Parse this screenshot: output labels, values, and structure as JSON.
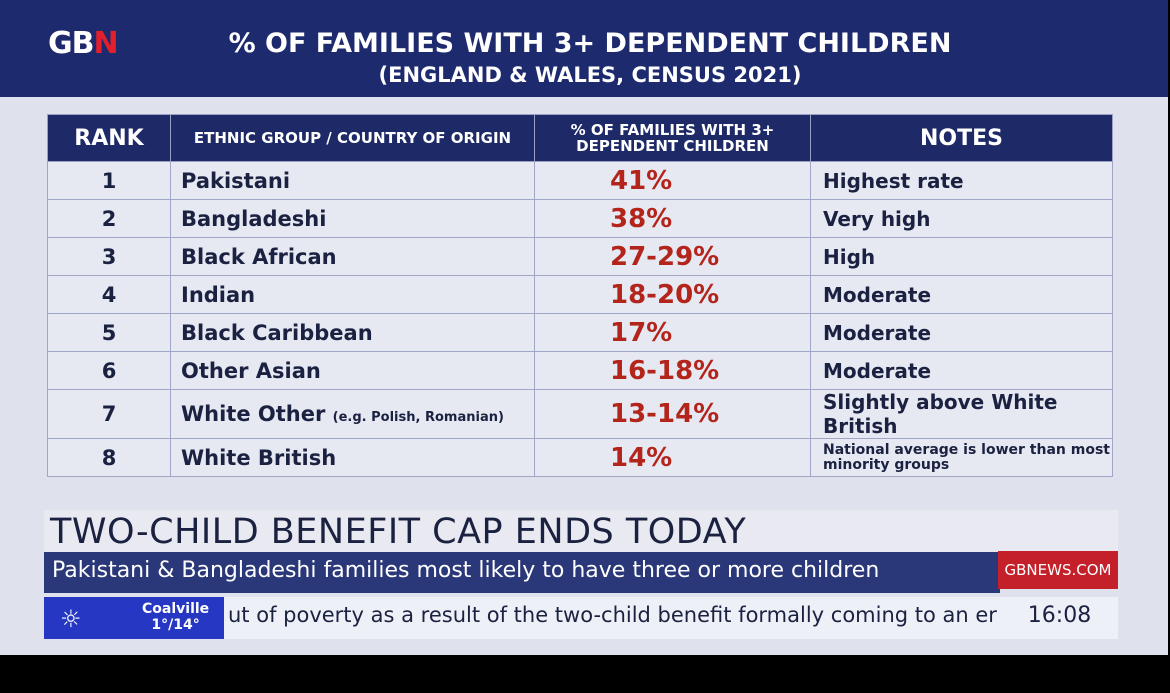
{
  "header": {
    "logo_parts": [
      "GB",
      "N"
    ],
    "title": "% OF FAMILIES WITH 3+ DEPENDENT CHILDREN",
    "subtitle": "(ENGLAND & WALES, CENSUS 2021)"
  },
  "table": {
    "columns": [
      "RANK",
      "ETHNIC GROUP / COUNTRY OF ORIGIN",
      "% OF FAMILIES WITH 3+ DEPENDENT CHILDREN",
      "NOTES"
    ],
    "rows": [
      {
        "rank": "1",
        "group": "Pakistani",
        "example": "",
        "pct": "41%",
        "notes": "Highest rate"
      },
      {
        "rank": "2",
        "group": "Bangladeshi",
        "example": "",
        "pct": "38%",
        "notes": "Very high"
      },
      {
        "rank": "3",
        "group": "Black African",
        "example": "",
        "pct": "27-29%",
        "notes": "High"
      },
      {
        "rank": "4",
        "group": "Indian",
        "example": "",
        "pct": "18-20%",
        "notes": "Moderate"
      },
      {
        "rank": "5",
        "group": "Black Caribbean",
        "example": "",
        "pct": "17%",
        "notes": "Moderate"
      },
      {
        "rank": "6",
        "group": "Other Asian",
        "example": "",
        "pct": "16-18%",
        "notes": "Moderate"
      },
      {
        "rank": "7",
        "group": "White Other",
        "example": "(e.g. Polish, Romanian)",
        "pct": "13-14%",
        "notes": "Slightly above White British"
      },
      {
        "rank": "8",
        "group": "White British",
        "example": "",
        "pct": "14%",
        "notes": "National average is lower than most minority groups"
      }
    ]
  },
  "lower_third": {
    "headline": "TWO-CHILD BENEFIT CAP ENDS TODAY",
    "strap": "Pakistani & Bangladeshi families most likely to have three or more children",
    "website": "GBNEWS.COM",
    "weather_location": "Coalville",
    "weather_temps": "1°/14°",
    "ticker": "ut of poverty as a result of the two-child benefit formally coming to an er",
    "clock": "16:08"
  },
  "colors": {
    "navy": "#1d2a6e",
    "percent_red": "#b3241b",
    "brand_red": "#c4202a",
    "weather_blue": "#2537c3"
  }
}
